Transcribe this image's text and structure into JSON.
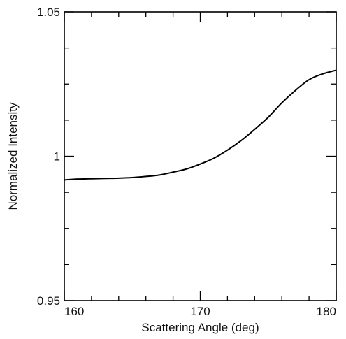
{
  "chart_data": {
    "type": "line",
    "title": "",
    "xlabel": "Scattering Angle (deg)",
    "ylabel": "Normalized Intensity",
    "xlim": [
      160,
      180
    ],
    "ylim": [
      0.95,
      1.05
    ],
    "x_major_ticks": [
      160,
      170,
      180
    ],
    "x_tick_labels": [
      "160",
      "170",
      "180"
    ],
    "x_minor_ticks": [
      162,
      164,
      166,
      168,
      172,
      174,
      176,
      178
    ],
    "y_major_ticks": [
      0.95,
      1.0,
      1.05
    ],
    "y_tick_labels": [
      "0.95",
      "1",
      "1.05"
    ],
    "y_minor_ticks": [
      0.9625,
      0.975,
      0.9875,
      1.0125,
      1.025,
      1.0375
    ],
    "grid": false,
    "legend": "none",
    "series": [
      {
        "color": "#000000",
        "x": [
          160,
          161,
          162,
          163,
          164,
          165,
          166,
          167,
          168,
          169,
          170,
          171,
          172,
          173,
          174,
          175,
          176,
          177,
          178,
          179,
          180
        ],
        "y": [
          0.9918,
          0.9921,
          0.9922,
          0.9923,
          0.9924,
          0.9926,
          0.993,
          0.9935,
          0.9945,
          0.9956,
          0.9973,
          0.9993,
          1.0021,
          1.0054,
          1.0093,
          1.0135,
          1.0185,
          1.0228,
          1.0265,
          1.0285,
          1.0298
        ]
      }
    ]
  }
}
